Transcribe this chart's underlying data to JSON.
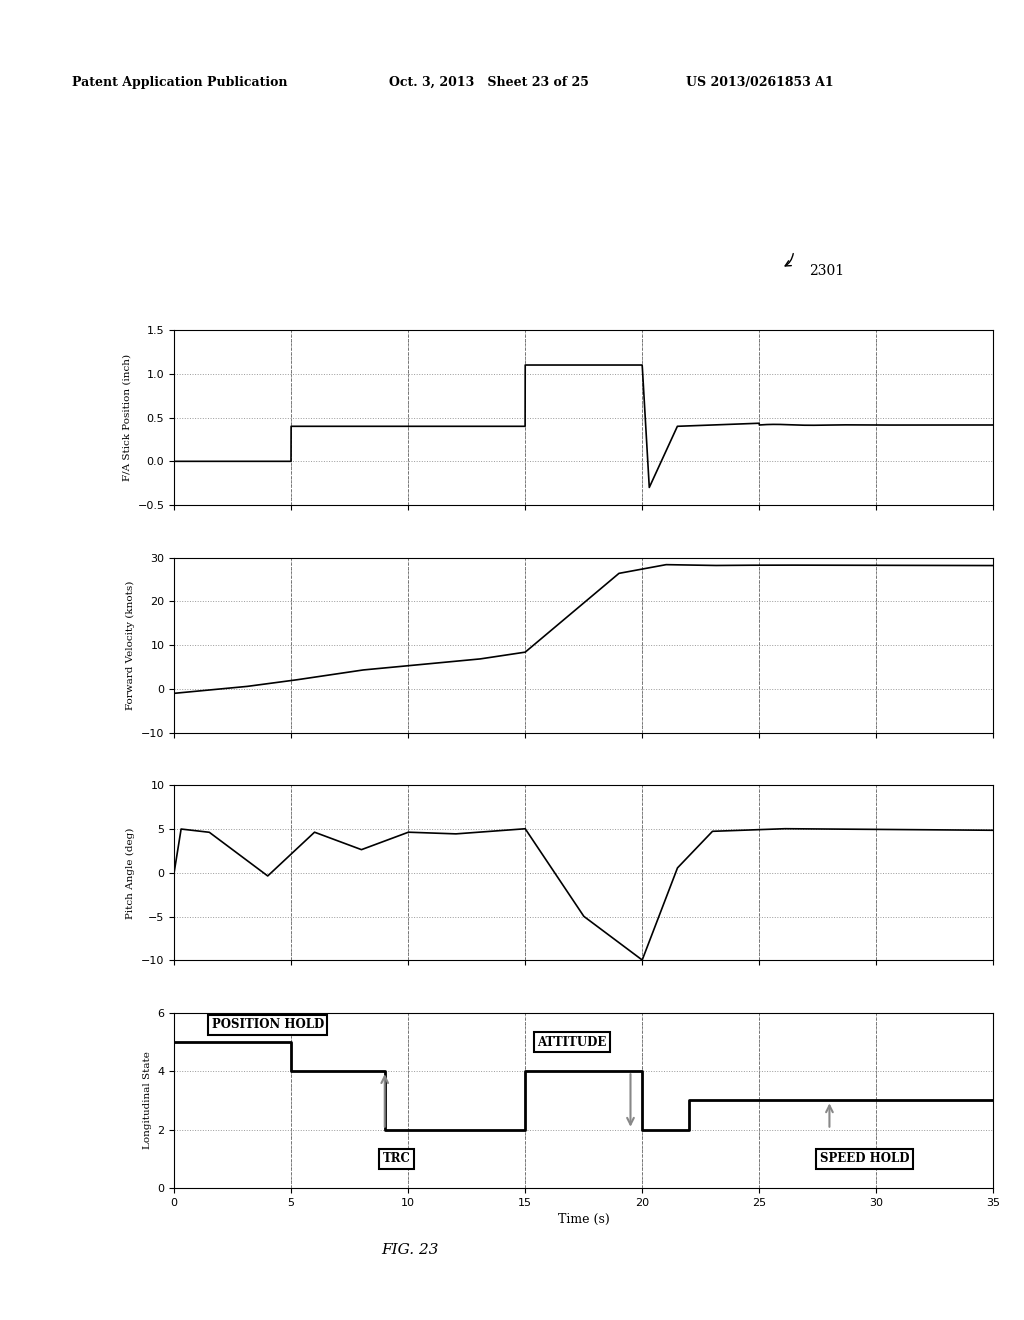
{
  "background_color": "#ffffff",
  "subplot1": {
    "ylabel": "F/A Stick Position (inch)",
    "ylim": [
      -0.5,
      1.5
    ],
    "yticks": [
      -0.5,
      0,
      0.5,
      1,
      1.5
    ],
    "xlim": [
      0,
      35
    ],
    "xticks": [
      0,
      5,
      10,
      15,
      20,
      25,
      30,
      35
    ]
  },
  "subplot2": {
    "ylabel": "Forward Velocity (knots)",
    "ylim": [
      -10,
      30
    ],
    "yticks": [
      -10,
      0,
      10,
      20,
      30
    ],
    "xlim": [
      0,
      35
    ],
    "xticks": [
      0,
      5,
      10,
      15,
      20,
      25,
      30,
      35
    ]
  },
  "subplot3": {
    "ylabel": "Pitch Angle (deg)",
    "ylim": [
      -10,
      10
    ],
    "yticks": [
      -10,
      -5,
      0,
      5,
      10
    ],
    "xlim": [
      0,
      35
    ],
    "xticks": [
      0,
      5,
      10,
      15,
      20,
      25,
      30,
      35
    ]
  },
  "subplot4": {
    "ylabel": "Longitudinal State",
    "xlabel": "Time (s)",
    "ylim": [
      0,
      6
    ],
    "yticks": [
      0,
      2,
      4,
      6
    ],
    "xlim": [
      0,
      35
    ],
    "xticks": [
      0,
      5,
      10,
      15,
      20,
      25,
      30,
      35
    ]
  },
  "line_color": "#000000",
  "grid_color": "#999999",
  "grid_style": ":"
}
